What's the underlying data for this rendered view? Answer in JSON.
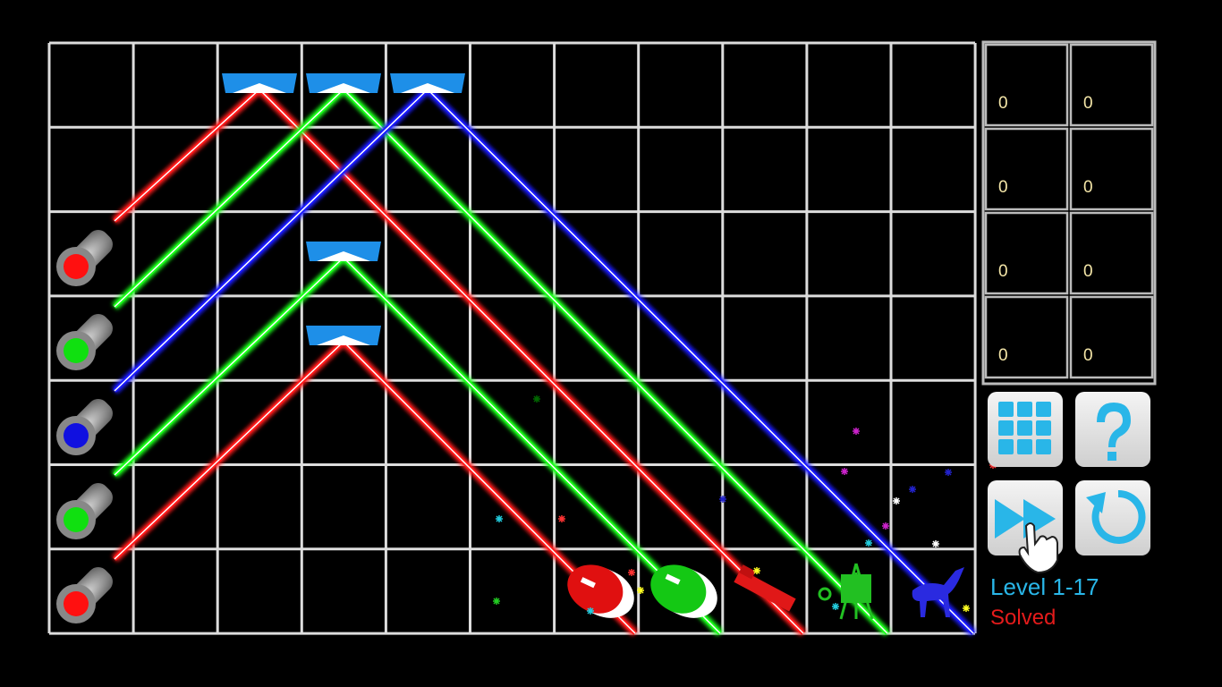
{
  "counters": [
    [
      0,
      0
    ],
    [
      0,
      0
    ],
    [
      0,
      0
    ],
    [
      0,
      0
    ]
  ],
  "level": "Level 1-17",
  "status": "Solved"
}
